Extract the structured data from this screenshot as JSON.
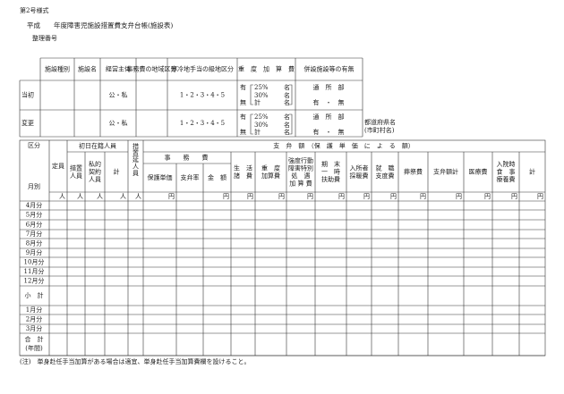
{
  "form_number": "第2号様式",
  "title": "平成　　年度障害児施設措置費支弁台帳(施設表)",
  "reference_number_label": "整理番号",
  "summary_table": {
    "headers": [
      "施設種別",
      "施設名",
      "経営主体",
      "事務費の地域区分",
      "寒冷地手当の級地区分",
      "重　度　加　算　費",
      "併設施設等の有無"
    ],
    "rows": [
      {
        "label": "当初",
        "management": "公・私",
        "cold_grade": "1・2・3・4・5",
        "has": "有",
        "rate1": "25%",
        "rate2": "30%",
        "none": "無",
        "total": "計",
        "unit": "名",
        "annex": "通　所　部",
        "annex_choice": "有　・　無"
      },
      {
        "label": "変更",
        "management": "公・私",
        "cold_grade": "1・2・3・4・5",
        "has": "有",
        "rate1": "25%",
        "rate2": "30%",
        "none": "無",
        "total": "計",
        "unit": "名",
        "annex": "通　所　部",
        "annex_choice": "有　・　無"
      }
    ]
  },
  "prefecture_note": [
    "都道府県名",
    "(市町村名)"
  ],
  "main_table": {
    "corner_top": "区分",
    "corner_bottom": "月別",
    "group_enrolled": "初日在籍人員",
    "group_payment": "支　弁　額　（保　護　単　価　に　よ　る　額）",
    "group_office": "事　　務　　費",
    "columns": [
      [
        "定員"
      ],
      [
        "措置",
        "人員"
      ],
      [
        "私的",
        "契約",
        "人員"
      ],
      [
        "計"
      ],
      [
        "措置延人員"
      ],
      [
        "保護単価"
      ],
      [
        "支弁率"
      ],
      [
        "金　額"
      ],
      [
        "生　活",
        "諸　費"
      ],
      [
        "重　度",
        "加算費"
      ],
      [
        "強度行動",
        "障害特別",
        "処　遇",
        "加 算 費"
      ],
      [
        "期　末",
        "一　時",
        "扶助費"
      ],
      [
        "入所者",
        "採暖費"
      ],
      [
        "就　職",
        "支度費"
      ],
      [
        "葬祭費"
      ],
      [
        "支弁額計"
      ],
      [
        "医療費"
      ],
      [
        "入院時",
        "食　事",
        "療養費"
      ],
      [
        "計"
      ]
    ],
    "units": [
      "人",
      "人",
      "人",
      "人",
      "人",
      "円",
      null,
      "円",
      "円",
      "円",
      "円",
      "円",
      "円",
      "円",
      "円",
      "円",
      "円",
      "円",
      "円"
    ],
    "rows": [
      "4月分",
      "5月分",
      "6月分",
      "7月分",
      "8月分",
      "9月分",
      "10月分",
      "11月分",
      "12月分",
      "小　計",
      "1月分",
      "2月分",
      "3月分"
    ],
    "total": [
      "合　計",
      "(年間)"
    ]
  },
  "footnote": "(注)　単身赴任手当加算がある場合は適宜、単身赴任手当加算費欄を設けること。"
}
